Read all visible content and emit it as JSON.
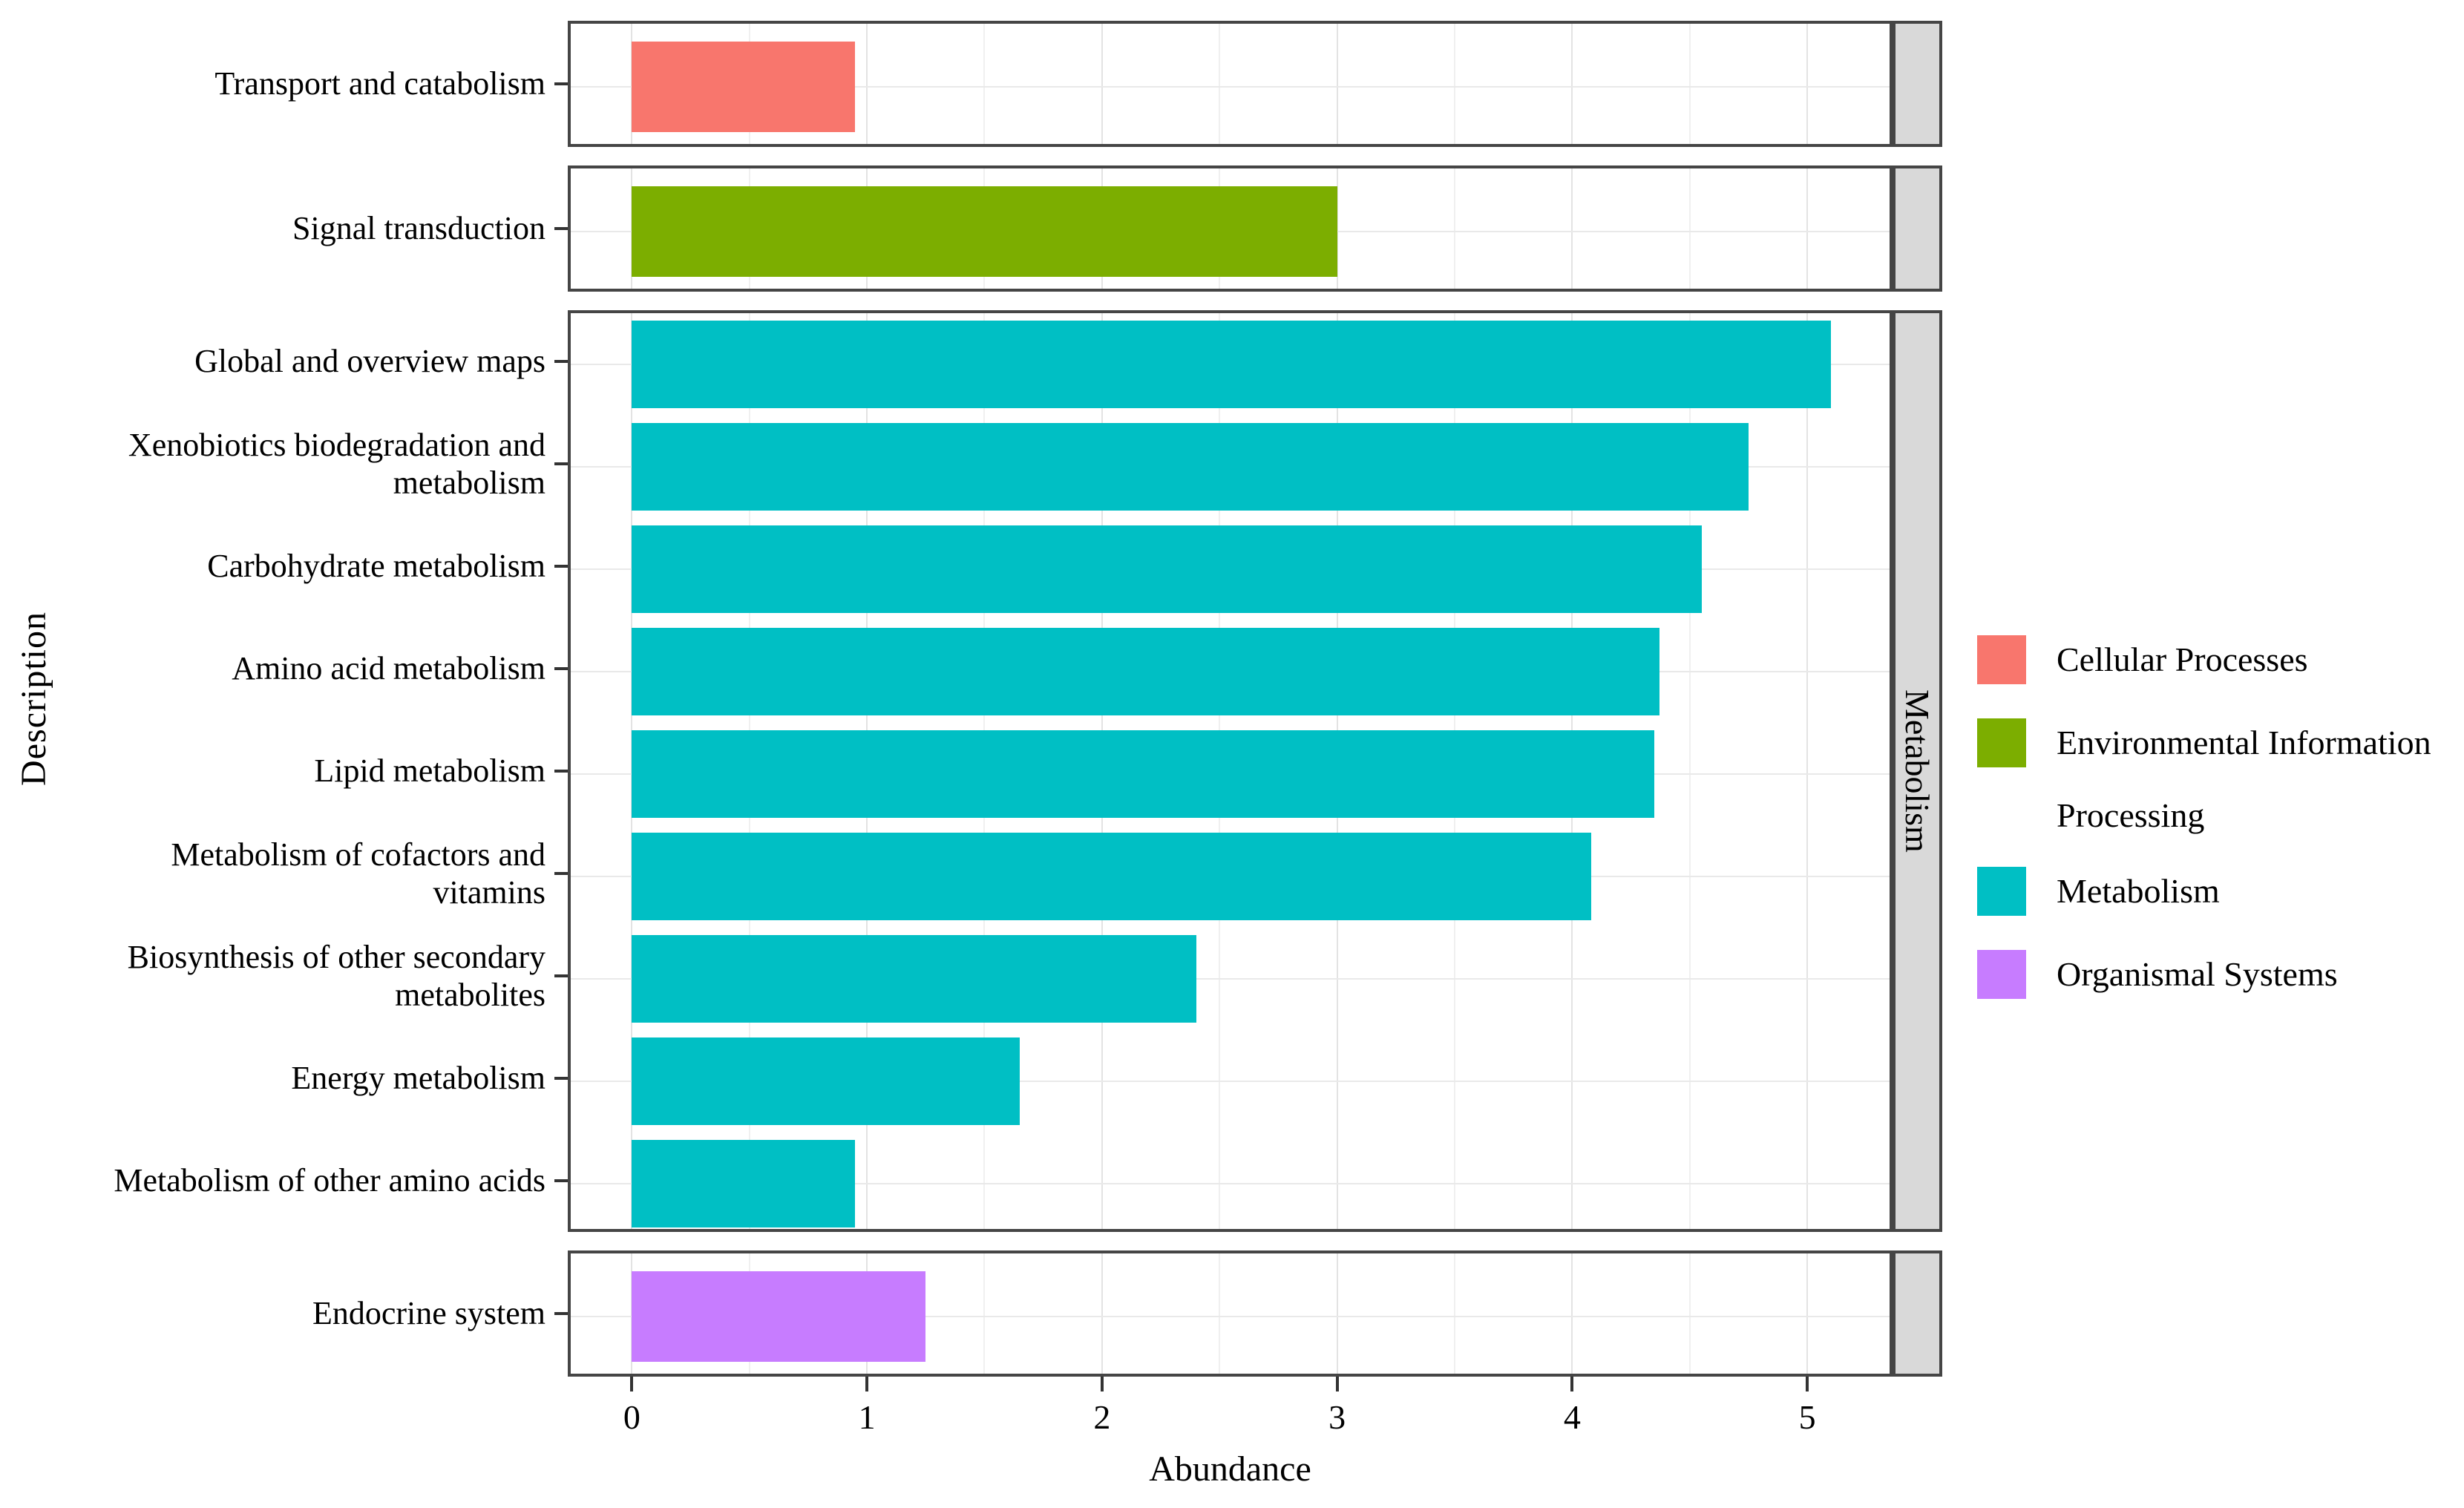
{
  "chart_data": {
    "type": "bar",
    "orientation": "horizontal",
    "title": "",
    "xlabel": "Abundance",
    "ylabel": "Description",
    "x_axis": {
      "ticks": [
        0,
        1,
        2,
        3,
        4,
        5
      ],
      "minor_ticks": [
        0.5,
        1.5,
        2.5,
        3.5,
        4.5
      ],
      "range": [
        -0.26,
        5.35
      ],
      "grid": true
    },
    "legend": {
      "position": "right",
      "entries": [
        {
          "label_lines": [
            "Cellular Processes"
          ],
          "color": "#F8766D"
        },
        {
          "label_lines": [
            "Environmental Information",
            "Processing"
          ],
          "color": "#7CAE00"
        },
        {
          "label_lines": [
            "Metabolism"
          ],
          "color": "#00BFC4"
        },
        {
          "label_lines": [
            "Organismal Systems"
          ],
          "color": "#C77CFF"
        }
      ]
    },
    "facets": [
      {
        "strip_label": "",
        "group": "Cellular Processes",
        "color": "#F8766D",
        "rows": [
          {
            "label_lines": [
              "Transport and catabolism"
            ],
            "value": 0.95
          }
        ]
      },
      {
        "strip_label": "",
        "group": "Environmental Information Processing",
        "color": "#7CAE00",
        "rows": [
          {
            "label_lines": [
              "Signal transduction"
            ],
            "value": 3.0
          }
        ]
      },
      {
        "strip_label": "Metabolism",
        "group": "Metabolism",
        "color": "#00BFC4",
        "rows": [
          {
            "label_lines": [
              "Global and overview maps"
            ],
            "value": 5.1
          },
          {
            "label_lines": [
              "Xenobiotics biodegradation and",
              "metabolism"
            ],
            "value": 4.75
          },
          {
            "label_lines": [
              "Carbohydrate metabolism"
            ],
            "value": 4.55
          },
          {
            "label_lines": [
              "Amino acid metabolism"
            ],
            "value": 4.37
          },
          {
            "label_lines": [
              "Lipid metabolism"
            ],
            "value": 4.35
          },
          {
            "label_lines": [
              "Metabolism of cofactors and",
              "vitamins"
            ],
            "value": 4.08
          },
          {
            "label_lines": [
              "Biosynthesis of other secondary",
              "metabolites"
            ],
            "value": 2.4
          },
          {
            "label_lines": [
              "Energy metabolism"
            ],
            "value": 1.65
          },
          {
            "label_lines": [
              "Metabolism of other amino acids"
            ],
            "value": 0.95
          }
        ]
      },
      {
        "strip_label": "",
        "group": "Organismal Systems",
        "color": "#C77CFF",
        "rows": [
          {
            "label_lines": [
              "Endocrine system"
            ],
            "value": 1.25
          }
        ]
      }
    ],
    "style": {
      "strip_fill": "#D9D9D9",
      "panel_border": "#454545",
      "grid_major": "#E3E3E3",
      "grid_minor": "#F0F0F0",
      "background": "#FFFFFF"
    }
  }
}
